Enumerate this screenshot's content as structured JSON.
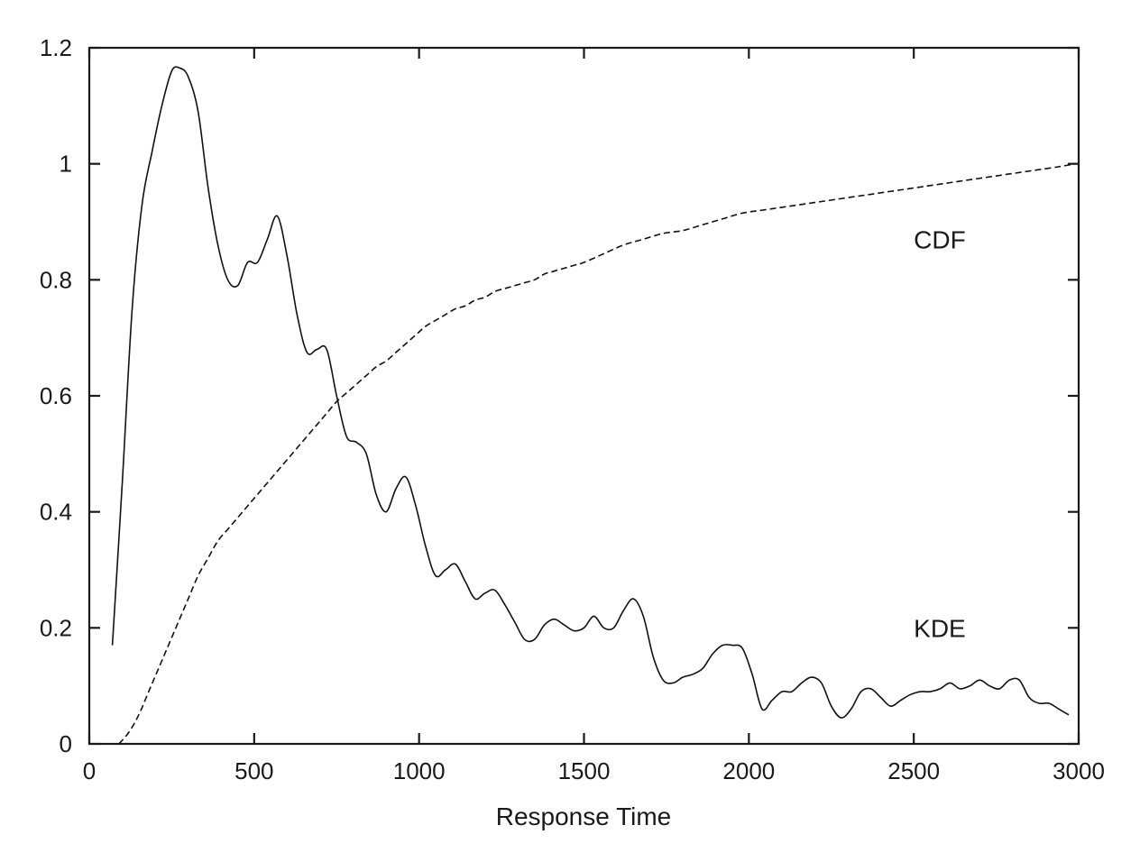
{
  "chart_data": {
    "type": "line",
    "title": "",
    "xlabel": "Response Time",
    "ylabel": "",
    "xlim": [
      0,
      3000
    ],
    "ylim": [
      0,
      1.2
    ],
    "x_ticks": [
      0,
      500,
      1000,
      1500,
      2000,
      2500,
      3000
    ],
    "x_tick_labels": [
      "0",
      "500",
      "1000",
      "1500",
      "2000",
      "2500",
      "3000"
    ],
    "y_ticks": [
      0,
      0.2,
      0.4,
      0.6,
      0.8,
      1,
      1.2
    ],
    "y_tick_labels": [
      "0",
      "0.2",
      "0.4",
      "0.6",
      "0.8",
      "1",
      "1.2"
    ],
    "grid": false,
    "legend": "none",
    "series": [
      {
        "name": "KDE",
        "style": "solid",
        "x": [
          70,
          100,
          130,
          160,
          190,
          220,
          250,
          275,
          300,
          330,
          360,
          390,
          420,
          450,
          480,
          510,
          540,
          570,
          600,
          630,
          660,
          690,
          720,
          750,
          780,
          810,
          840,
          870,
          900,
          930,
          960,
          990,
          1020,
          1050,
          1080,
          1110,
          1140,
          1170,
          1200,
          1230,
          1260,
          1290,
          1320,
          1350,
          1380,
          1410,
          1440,
          1470,
          1500,
          1530,
          1560,
          1590,
          1620,
          1650,
          1680,
          1710,
          1740,
          1770,
          1800,
          1830,
          1860,
          1890,
          1920,
          1950,
          1980,
          2010,
          2040,
          2070,
          2100,
          2130,
          2160,
          2190,
          2220,
          2250,
          2280,
          2310,
          2340,
          2370,
          2400,
          2430,
          2460,
          2490,
          2520,
          2550,
          2580,
          2610,
          2640,
          2670,
          2700,
          2730,
          2760,
          2790,
          2820,
          2850,
          2880,
          2910,
          2940,
          2970
        ],
        "values": [
          0.17,
          0.45,
          0.75,
          0.93,
          1.02,
          1.1,
          1.16,
          1.165,
          1.15,
          1.09,
          0.96,
          0.86,
          0.8,
          0.79,
          0.83,
          0.83,
          0.87,
          0.91,
          0.84,
          0.74,
          0.675,
          0.68,
          0.68,
          0.6,
          0.53,
          0.52,
          0.5,
          0.43,
          0.4,
          0.44,
          0.46,
          0.41,
          0.34,
          0.29,
          0.3,
          0.31,
          0.28,
          0.25,
          0.26,
          0.265,
          0.24,
          0.21,
          0.18,
          0.18,
          0.205,
          0.215,
          0.205,
          0.195,
          0.2,
          0.22,
          0.2,
          0.2,
          0.23,
          0.25,
          0.22,
          0.15,
          0.11,
          0.105,
          0.115,
          0.12,
          0.13,
          0.155,
          0.17,
          0.17,
          0.165,
          0.12,
          0.06,
          0.075,
          0.09,
          0.09,
          0.105,
          0.115,
          0.105,
          0.065,
          0.045,
          0.06,
          0.09,
          0.095,
          0.08,
          0.065,
          0.075,
          0.085,
          0.09,
          0.09,
          0.095,
          0.105,
          0.095,
          0.1,
          0.11,
          0.1,
          0.095,
          0.11,
          0.11,
          0.08,
          0.07,
          0.07,
          0.06,
          0.05
        ]
      },
      {
        "name": "CDF",
        "style": "dashed",
        "x": [
          90,
          120,
          150,
          180,
          210,
          240,
          270,
          300,
          330,
          360,
          390,
          420,
          450,
          480,
          510,
          540,
          570,
          600,
          630,
          660,
          690,
          720,
          750,
          780,
          810,
          840,
          870,
          900,
          930,
          960,
          990,
          1020,
          1050,
          1080,
          1110,
          1140,
          1170,
          1200,
          1230,
          1260,
          1290,
          1320,
          1350,
          1380,
          1410,
          1440,
          1470,
          1500,
          1560,
          1620,
          1680,
          1740,
          1800,
          1860,
          1920,
          1980,
          2040,
          2100,
          2160,
          2220,
          2280,
          2340,
          2400,
          2460,
          2520,
          2580,
          2640,
          2700,
          2760,
          2820,
          2880,
          2940,
          2990
        ],
        "values": [
          0.0,
          0.02,
          0.05,
          0.09,
          0.13,
          0.17,
          0.21,
          0.25,
          0.29,
          0.32,
          0.35,
          0.37,
          0.39,
          0.41,
          0.43,
          0.45,
          0.47,
          0.49,
          0.51,
          0.53,
          0.55,
          0.57,
          0.59,
          0.605,
          0.62,
          0.635,
          0.65,
          0.66,
          0.675,
          0.69,
          0.705,
          0.72,
          0.73,
          0.74,
          0.75,
          0.755,
          0.765,
          0.77,
          0.78,
          0.785,
          0.79,
          0.795,
          0.8,
          0.81,
          0.815,
          0.82,
          0.825,
          0.83,
          0.845,
          0.86,
          0.87,
          0.88,
          0.885,
          0.895,
          0.905,
          0.915,
          0.92,
          0.925,
          0.93,
          0.935,
          0.94,
          0.945,
          0.95,
          0.955,
          0.96,
          0.965,
          0.97,
          0.975,
          0.98,
          0.985,
          0.99,
          0.995,
          1.0
        ]
      }
    ],
    "annotations": [
      {
        "text": "CDF",
        "x": 2500,
        "y": 0.87
      },
      {
        "text": "KDE",
        "x": 2500,
        "y": 0.2
      }
    ]
  }
}
